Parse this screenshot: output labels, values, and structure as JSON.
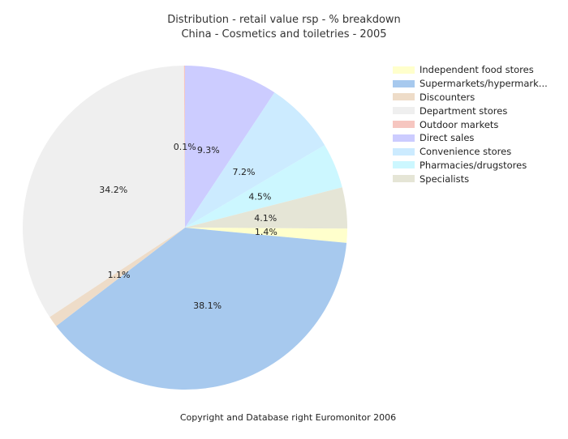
{
  "chart_data": {
    "type": "pie",
    "title": "Distribution  - retail value rsp  - % breakdown",
    "subtitle": "China - Cosmetics and toiletries - 2005",
    "unit": "%",
    "start": "12 o'clock, clockwise",
    "legend_position": "right",
    "slices": [
      {
        "label": "Independent food stores",
        "value": 1.4,
        "display": "1.4%",
        "color": "#FFFFCC"
      },
      {
        "label": "Supermarkets/hypermark...",
        "value": 38.1,
        "display": "38.1%",
        "color": "#A7C9EE"
      },
      {
        "label": "Discounters",
        "value": 1.1,
        "display": "1.1%",
        "color": "#EEDCC8"
      },
      {
        "label": "Department stores",
        "value": 34.2,
        "display": "34.2%",
        "color": "#EFEFEF"
      },
      {
        "label": "Outdoor markets",
        "value": 0.1,
        "display": "0.1%",
        "color": "#F6C6C0"
      },
      {
        "label": "Direct sales",
        "value": 9.3,
        "display": "9.3%",
        "color": "#CCCCFF"
      },
      {
        "label": "Convenience stores",
        "value": 7.2,
        "display": "7.2%",
        "color": "#CCEBFF"
      },
      {
        "label": "Pharmacies/drugstores",
        "value": 4.5,
        "display": "4.5%",
        "color": "#CCF7FF"
      },
      {
        "label": "Specialists",
        "value": 4.1,
        "display": "4.1%",
        "color": "#E5E5D6"
      }
    ],
    "draw_order": [
      5,
      6,
      7,
      8,
      0,
      1,
      2,
      3,
      4
    ]
  },
  "footer": "Copyright and Database right Euromonitor 2006"
}
